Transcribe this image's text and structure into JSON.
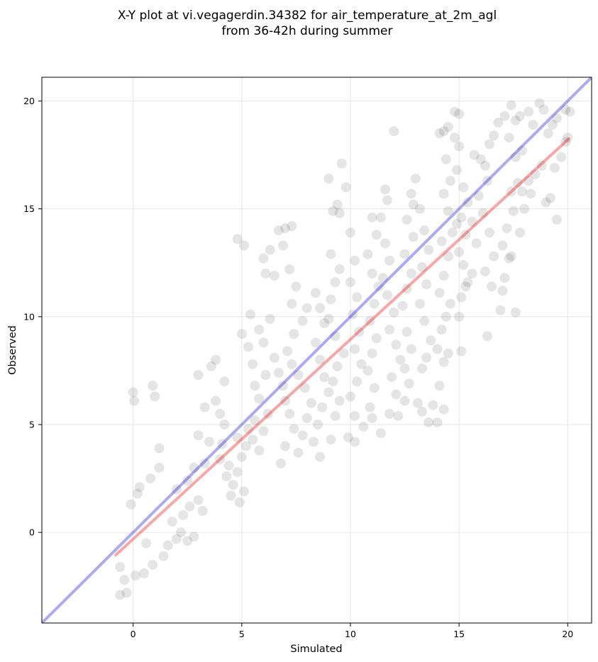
{
  "chart_data": {
    "type": "scatter",
    "title": "X-Y plot at vi.vegagerdin.34382 for air_temperature_at_2m_agl",
    "subtitle": "from 36-42h during summer",
    "xlabel": "Simulated",
    "ylabel": "Observed",
    "xlim": [
      -4.2,
      21.1
    ],
    "ylim": [
      -4.2,
      21.1
    ],
    "xticks": [
      0,
      5,
      10,
      15,
      20
    ],
    "yticks": [
      0,
      5,
      10,
      15,
      20
    ],
    "grid": true,
    "point_color": "#000000",
    "identity_line": {
      "color": "#0000dd",
      "from": [
        -4.2,
        -4.2
      ],
      "to": [
        21.1,
        21.1
      ]
    },
    "fit_line": {
      "color": "#ee0000",
      "from": [
        -0.8,
        -1.05
      ],
      "to": [
        20.05,
        18.25
      ]
    },
    "points": [
      [
        0.0,
        6.5
      ],
      [
        0.05,
        6.1
      ],
      [
        0.9,
        6.8
      ],
      [
        1.0,
        6.3
      ],
      [
        -0.1,
        1.3
      ],
      [
        0.2,
        1.8
      ],
      [
        0.3,
        2.1
      ],
      [
        0.6,
        -0.5
      ],
      [
        1.2,
        3.0
      ],
      [
        1.2,
        3.9
      ],
      [
        0.8,
        2.5
      ],
      [
        -0.6,
        -1.6
      ],
      [
        -0.4,
        -2.2
      ],
      [
        -0.6,
        -2.9
      ],
      [
        -0.3,
        -2.8
      ],
      [
        0.1,
        -2.0
      ],
      [
        0.5,
        -1.9
      ],
      [
        0.9,
        -1.5
      ],
      [
        1.4,
        -1.1
      ],
      [
        1.6,
        -0.6
      ],
      [
        2.0,
        -0.3
      ],
      [
        2.2,
        0.0
      ],
      [
        2.5,
        -0.4
      ],
      [
        2.8,
        -0.2
      ],
      [
        1.8,
        0.5
      ],
      [
        2.3,
        0.8
      ],
      [
        2.6,
        1.2
      ],
      [
        3.0,
        1.5
      ],
      [
        3.2,
        1.0
      ],
      [
        2.0,
        2.0
      ],
      [
        2.5,
        2.4
      ],
      [
        2.8,
        3.0
      ],
      [
        3.3,
        3.2
      ],
      [
        3.0,
        4.5
      ],
      [
        3.5,
        4.2
      ],
      [
        3.3,
        5.8
      ],
      [
        3.0,
        7.3
      ],
      [
        3.6,
        7.7
      ],
      [
        3.8,
        8.0
      ],
      [
        4.2,
        7.0
      ],
      [
        3.8,
        6.1
      ],
      [
        4.0,
        5.5
      ],
      [
        4.2,
        5.0
      ],
      [
        4.1,
        4.1
      ],
      [
        4.0,
        3.4
      ],
      [
        4.4,
        3.1
      ],
      [
        4.3,
        2.6
      ],
      [
        4.6,
        2.2
      ],
      [
        4.5,
        1.7
      ],
      [
        4.9,
        1.4
      ],
      [
        5.1,
        1.9
      ],
      [
        4.8,
        2.8
      ],
      [
        5.0,
        3.5
      ],
      [
        5.2,
        4.0
      ],
      [
        4.8,
        4.4
      ],
      [
        5.3,
        4.8
      ],
      [
        5.6,
        5.2
      ],
      [
        5.5,
        4.3
      ],
      [
        5.8,
        3.8
      ],
      [
        6.0,
        4.7
      ],
      [
        6.2,
        5.5
      ],
      [
        5.8,
        6.2
      ],
      [
        5.6,
        6.8
      ],
      [
        6.1,
        7.3
      ],
      [
        5.5,
        7.8
      ],
      [
        5.3,
        8.6
      ],
      [
        5.0,
        9.2
      ],
      [
        5.4,
        10.1
      ],
      [
        5.8,
        9.4
      ],
      [
        6.0,
        8.8
      ],
      [
        6.3,
        9.9
      ],
      [
        6.1,
        12.0
      ],
      [
        6.0,
        12.7
      ],
      [
        6.3,
        13.1
      ],
      [
        4.8,
        13.6
      ],
      [
        5.1,
        13.3
      ],
      [
        6.5,
        11.9
      ],
      [
        6.5,
        8.1
      ],
      [
        6.7,
        7.4
      ],
      [
        6.9,
        6.8
      ],
      [
        7.0,
        6.1
      ],
      [
        7.2,
        5.5
      ],
      [
        7.4,
        4.8
      ],
      [
        7.0,
        4.0
      ],
      [
        6.8,
        3.2
      ],
      [
        7.6,
        3.7
      ],
      [
        7.8,
        4.5
      ],
      [
        8.0,
        5.3
      ],
      [
        8.2,
        6.0
      ],
      [
        7.9,
        6.7
      ],
      [
        7.6,
        7.3
      ],
      [
        7.3,
        7.8
      ],
      [
        7.1,
        8.4
      ],
      [
        7.4,
        9.2
      ],
      [
        7.8,
        9.8
      ],
      [
        8.0,
        10.4
      ],
      [
        7.3,
        10.6
      ],
      [
        7.5,
        11.4
      ],
      [
        7.2,
        12.2
      ],
      [
        6.9,
        13.3
      ],
      [
        7.0,
        14.1
      ],
      [
        7.3,
        14.2
      ],
      [
        6.7,
        14.0
      ],
      [
        8.4,
        11.1
      ],
      [
        8.6,
        10.4
      ],
      [
        8.8,
        9.7
      ],
      [
        8.4,
        8.8
      ],
      [
        8.6,
        8.0
      ],
      [
        8.8,
        7.2
      ],
      [
        9.0,
        6.5
      ],
      [
        8.7,
        5.8
      ],
      [
        8.5,
        5.0
      ],
      [
        9.1,
        4.3
      ],
      [
        8.3,
        4.2
      ],
      [
        8.6,
        3.5
      ],
      [
        9.3,
        5.4
      ],
      [
        9.5,
        6.1
      ],
      [
        9.2,
        7.0
      ],
      [
        9.4,
        7.7
      ],
      [
        9.7,
        8.3
      ],
      [
        9.3,
        9.1
      ],
      [
        9.0,
        9.9
      ],
      [
        9.1,
        10.8
      ],
      [
        9.3,
        11.6
      ],
      [
        9.5,
        12.2
      ],
      [
        9.1,
        12.9
      ],
      [
        9.2,
        14.9
      ],
      [
        9.5,
        14.8
      ],
      [
        9.4,
        15.2
      ],
      [
        9.0,
        16.4
      ],
      [
        9.6,
        17.1
      ],
      [
        9.8,
        16.0
      ],
      [
        10.0,
        13.9
      ],
      [
        10.2,
        12.6
      ],
      [
        10.0,
        11.6
      ],
      [
        10.3,
        10.9
      ],
      [
        10.1,
        10.1
      ],
      [
        10.4,
        9.3
      ],
      [
        10.2,
        8.5
      ],
      [
        10.5,
        7.8
      ],
      [
        10.3,
        7.0
      ],
      [
        10.0,
        6.3
      ],
      [
        10.2,
        5.4
      ],
      [
        9.9,
        4.4
      ],
      [
        10.2,
        4.2
      ],
      [
        10.6,
        4.9
      ],
      [
        10.9,
        5.8
      ],
      [
        11.1,
        6.7
      ],
      [
        10.8,
        7.5
      ],
      [
        11.0,
        8.3
      ],
      [
        11.2,
        9.0
      ],
      [
        10.9,
        9.8
      ],
      [
        11.1,
        10.6
      ],
      [
        11.3,
        11.4
      ],
      [
        11.0,
        12.0
      ],
      [
        10.8,
        12.9
      ],
      [
        11.2,
        13.8
      ],
      [
        11.0,
        14.6
      ],
      [
        11.4,
        14.6
      ],
      [
        11.6,
        13.4
      ],
      [
        11.8,
        12.6
      ],
      [
        11.5,
        11.8
      ],
      [
        11.7,
        11.0
      ],
      [
        12.0,
        10.2
      ],
      [
        11.8,
        9.4
      ],
      [
        12.1,
        8.7
      ],
      [
        12.3,
        8.0
      ],
      [
        11.9,
        7.2
      ],
      [
        12.1,
        6.4
      ],
      [
        11.8,
        5.5
      ],
      [
        12.2,
        5.4
      ],
      [
        11.4,
        4.6
      ],
      [
        11.0,
        5.3
      ],
      [
        12.5,
        6.1
      ],
      [
        12.7,
        6.9
      ],
      [
        12.5,
        7.6
      ],
      [
        12.8,
        8.5
      ],
      [
        12.6,
        9.3
      ],
      [
        12.4,
        10.5
      ],
      [
        12.6,
        11.3
      ],
      [
        12.8,
        12.0
      ],
      [
        12.5,
        12.9
      ],
      [
        12.9,
        13.7
      ],
      [
        12.6,
        14.5
      ],
      [
        12.8,
        15.7
      ],
      [
        13.0,
        16.4
      ],
      [
        12.9,
        15.2
      ],
      [
        11.6,
        15.9
      ],
      [
        11.7,
        15.4
      ],
      [
        12.0,
        18.6
      ],
      [
        13.2,
        15.0
      ],
      [
        13.4,
        14.0
      ],
      [
        13.6,
        13.1
      ],
      [
        13.3,
        12.3
      ],
      [
        13.5,
        11.5
      ],
      [
        13.2,
        10.6
      ],
      [
        13.4,
        9.8
      ],
      [
        13.7,
        8.9
      ],
      [
        13.5,
        8.1
      ],
      [
        13.3,
        7.6
      ],
      [
        13.1,
        6.0
      ],
      [
        13.3,
        5.6
      ],
      [
        13.6,
        5.1
      ],
      [
        13.8,
        5.9
      ],
      [
        14.0,
        5.1
      ],
      [
        14.3,
        5.7
      ],
      [
        14.1,
        6.8
      ],
      [
        14.3,
        7.9
      ],
      [
        14.5,
        8.3
      ],
      [
        14.0,
        8.5
      ],
      [
        14.2,
        9.4
      ],
      [
        14.4,
        10.0
      ],
      [
        14.6,
        10.6
      ],
      [
        14.1,
        11.1
      ],
      [
        14.3,
        11.9
      ],
      [
        14.5,
        12.8
      ],
      [
        14.2,
        13.5
      ],
      [
        14.7,
        13.9
      ],
      [
        14.9,
        14.3
      ],
      [
        14.5,
        14.9
      ],
      [
        14.3,
        15.7
      ],
      [
        14.6,
        16.3
      ],
      [
        14.9,
        16.8
      ],
      [
        14.4,
        17.3
      ],
      [
        14.1,
        18.5
      ],
      [
        14.3,
        18.6
      ],
      [
        14.5,
        18.8
      ],
      [
        14.8,
        18.3
      ],
      [
        15.0,
        17.9
      ],
      [
        14.8,
        19.5
      ],
      [
        15.0,
        19.4
      ],
      [
        15.2,
        16.0
      ],
      [
        15.4,
        15.3
      ],
      [
        15.1,
        14.6
      ],
      [
        15.3,
        13.8
      ],
      [
        15.0,
        13.0
      ],
      [
        15.2,
        12.4
      ],
      [
        15.4,
        11.6
      ],
      [
        15.1,
        10.9
      ],
      [
        15.0,
        10.0
      ],
      [
        15.3,
        11.4
      ],
      [
        15.1,
        8.4
      ],
      [
        15.6,
        12.0
      ],
      [
        15.8,
        13.4
      ],
      [
        15.6,
        14.4
      ],
      [
        15.9,
        15.6
      ],
      [
        15.7,
        17.5
      ],
      [
        16.0,
        17.3
      ],
      [
        16.2,
        17.0
      ],
      [
        16.4,
        18.0
      ],
      [
        16.6,
        18.4
      ],
      [
        16.8,
        19.0
      ],
      [
        16.3,
        16.3
      ],
      [
        16.1,
        14.8
      ],
      [
        16.4,
        13.9
      ],
      [
        16.6,
        12.8
      ],
      [
        16.2,
        12.1
      ],
      [
        16.5,
        11.4
      ],
      [
        16.3,
        9.1
      ],
      [
        16.9,
        10.3
      ],
      [
        17.1,
        11.8
      ],
      [
        17.3,
        12.7
      ],
      [
        17.0,
        13.3
      ],
      [
        17.2,
        14.1
      ],
      [
        17.5,
        14.9
      ],
      [
        17.4,
        15.8
      ],
      [
        17.7,
        16.2
      ],
      [
        17.6,
        17.4
      ],
      [
        17.9,
        17.7
      ],
      [
        17.3,
        18.3
      ],
      [
        17.1,
        19.3
      ],
      [
        17.4,
        19.8
      ],
      [
        17.6,
        19.1
      ],
      [
        17.8,
        19.3
      ],
      [
        18.2,
        19.5
      ],
      [
        18.4,
        18.9
      ],
      [
        18.7,
        19.9
      ],
      [
        18.9,
        19.6
      ],
      [
        19.1,
        18.5
      ],
      [
        19.3,
        18.9
      ],
      [
        19.5,
        19.2
      ],
      [
        19.9,
        19.6
      ],
      [
        20.1,
        19.5
      ],
      [
        18.0,
        15.0
      ],
      [
        18.3,
        15.7
      ],
      [
        18.5,
        16.6
      ],
      [
        18.8,
        17.0
      ],
      [
        19.0,
        15.3
      ],
      [
        19.2,
        15.5
      ],
      [
        19.4,
        16.9
      ],
      [
        19.5,
        14.5
      ],
      [
        19.7,
        17.4
      ],
      [
        19.9,
        18.1
      ],
      [
        20.0,
        18.3
      ],
      [
        17.8,
        13.9
      ],
      [
        17.6,
        10.2
      ],
      [
        17.0,
        11.2
      ],
      [
        17.4,
        12.8
      ],
      [
        17.9,
        15.8
      ],
      [
        18.2,
        16.3
      ]
    ]
  }
}
